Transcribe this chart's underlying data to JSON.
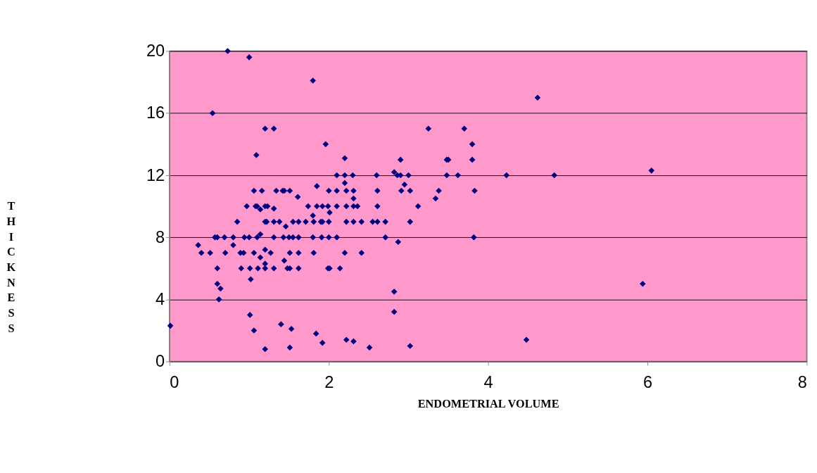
{
  "chart_data": {
    "type": "scatter",
    "xlabel": "ENDOMETRIAL VOLUME",
    "ylabel": "THICKNESS",
    "xlim": [
      0,
      8
    ],
    "ylim": [
      0,
      20
    ],
    "xticks": [
      0,
      2,
      4,
      6,
      8
    ],
    "yticks": [
      0,
      4,
      8,
      12,
      16,
      20
    ],
    "grid": "y",
    "legend": false,
    "marker": "diamond",
    "series": [
      {
        "color": "#000080",
        "x": [
          0.01,
          0.73,
          1.0,
          1.8,
          0.54,
          4.62,
          1.2,
          1.31,
          3.25,
          3.7,
          1.96,
          3.8,
          1.09,
          2.2,
          2.9,
          3.48,
          3.5,
          3.8,
          2.1,
          2.2,
          2.3,
          2.6,
          2.82,
          2.86,
          2.9,
          3.0,
          3.48,
          3.62,
          4.23,
          4.83,
          6.05,
          2.2,
          2.95,
          1.06,
          1.16,
          1.34,
          1.42,
          1.44,
          1.51,
          1.61,
          1.85,
          2.0,
          2.1,
          2.22,
          2.31,
          2.61,
          2.91,
          3.02,
          3.38,
          3.34,
          3.83,
          0.97,
          1.08,
          1.1,
          1.14,
          1.2,
          1.23,
          1.31,
          1.74,
          1.85,
          1.92,
          1.99,
          2.1,
          2.22,
          2.31,
          2.36,
          2.61,
          3.12,
          2.01,
          2.31,
          0.85,
          1.2,
          1.22,
          1.31,
          1.38,
          1.46,
          1.55,
          1.62,
          1.71,
          1.8,
          1.81,
          1.9,
          1.92,
          2.0,
          2.22,
          2.31,
          2.41,
          2.55,
          2.61,
          2.71,
          3.02,
          0.57,
          0.6,
          0.69,
          0.8,
          0.94,
          1.0,
          1.1,
          1.14,
          1.31,
          1.43,
          1.5,
          1.55,
          1.62,
          1.8,
          1.91,
          2.0,
          2.1,
          2.71,
          3.82,
          2.87,
          0.36,
          0.8,
          0.4,
          0.51,
          0.7,
          0.89,
          0.93,
          1.06,
          1.14,
          1.2,
          1.27,
          1.44,
          1.51,
          1.62,
          1.81,
          2.2,
          2.41,
          0.6,
          0.9,
          1.01,
          1.11,
          1.2,
          1.2,
          1.31,
          1.48,
          1.51,
          1.62,
          1.99,
          2.01,
          2.14,
          1.02,
          0.6,
          0.64,
          0.62,
          2.82,
          2.82,
          5.94,
          1.01,
          1.4,
          1.53,
          1.06,
          1.84,
          1.92,
          1.2,
          1.51,
          2.22,
          2.31,
          2.51,
          3.02,
          4.48
        ],
        "values": [
          2.3,
          20,
          19.6,
          18.1,
          16,
          17,
          15,
          15,
          15,
          15,
          14,
          14,
          13.3,
          13.1,
          13,
          13,
          13,
          13,
          12,
          12,
          12,
          12,
          12.2,
          12,
          12,
          12,
          12,
          12,
          12,
          12,
          12.3,
          11.5,
          11.4,
          11,
          11,
          11,
          11,
          11,
          11,
          10.6,
          11.3,
          11,
          11,
          11,
          11,
          11,
          11,
          11,
          11,
          10.5,
          11,
          10,
          10,
          10,
          9.8,
          10,
          10,
          9.85,
          10,
          10,
          10,
          10,
          10,
          10,
          10,
          10,
          10,
          10,
          9.6,
          10.5,
          9,
          9,
          9,
          9,
          9,
          8.7,
          9,
          9,
          9,
          9.4,
          9,
          9,
          9,
          9,
          9,
          9,
          9,
          9,
          9,
          9,
          9,
          8,
          8,
          8,
          8,
          8,
          8,
          8,
          8.2,
          8,
          8,
          8,
          8,
          8,
          8,
          8,
          8,
          8,
          8,
          8,
          7.7,
          7.5,
          7.5,
          7,
          7,
          7,
          7,
          7,
          7,
          6.7,
          7.2,
          7,
          6.5,
          7,
          7,
          7,
          7,
          7,
          6,
          6,
          6,
          6,
          6.3,
          6,
          6,
          6,
          6,
          6,
          6,
          6,
          6,
          5.3,
          5,
          4.7,
          4,
          4.5,
          3.2,
          5,
          3,
          2.4,
          2.1,
          2,
          1.8,
          1.2,
          0.8,
          0.9,
          1.4,
          1.3,
          0.9,
          1,
          1.4
        ]
      }
    ]
  }
}
